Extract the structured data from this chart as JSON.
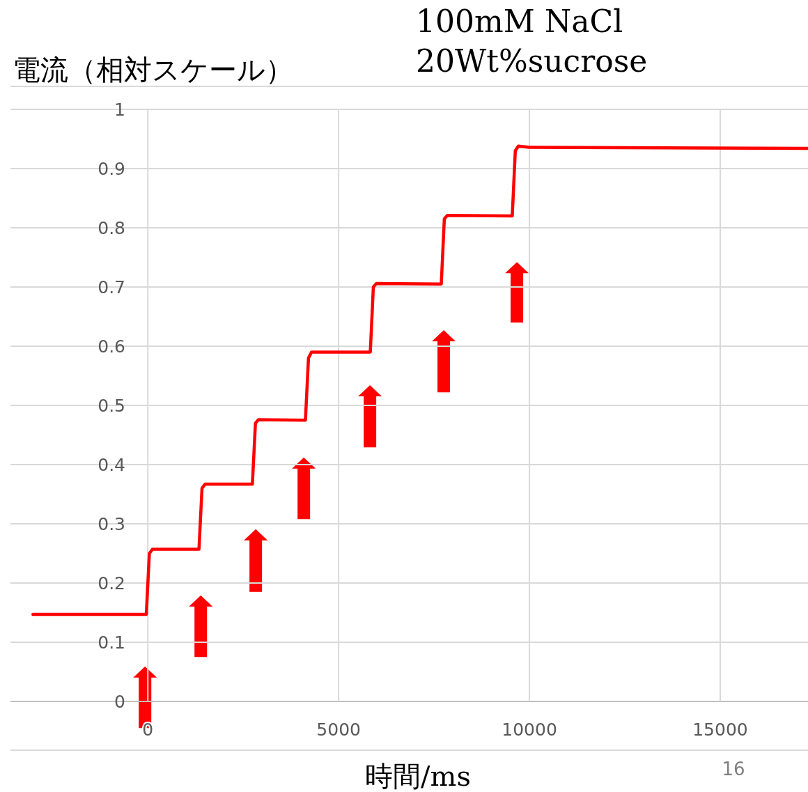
{
  "chart_data": {
    "type": "line",
    "xlabel": "時間/ms",
    "ylabel": "電流（相対スケール）",
    "annotations": [
      "100mM NaCl",
      "20Wt%sucrose",
      "16"
    ],
    "x": [
      -3011,
      -40,
      40,
      120,
      1340,
      1420,
      1500,
      2740,
      2820,
      2900,
      4130,
      4210,
      4290,
      5830,
      5910,
      5990,
      7690,
      7770,
      7850,
      9550,
      9630,
      9710,
      10000,
      17280
    ],
    "series": [
      {
        "color": "#ff0000",
        "values": [
          0.147,
          0.147,
          0.25,
          0.257,
          0.257,
          0.36,
          0.367,
          0.367,
          0.47,
          0.476,
          0.475,
          0.58,
          0.59,
          0.59,
          0.7,
          0.706,
          0.705,
          0.815,
          0.821,
          0.82,
          0.93,
          0.938,
          0.936,
          0.934
        ]
      }
    ],
    "xlim": [
      -3600,
      17300
    ],
    "ylim": [
      0,
      1
    ],
    "xticks": [
      0,
      5000,
      10000,
      15000
    ],
    "yticks": [
      0,
      0.1,
      0.2,
      0.3,
      0.4,
      0.5,
      0.6,
      0.7,
      0.8,
      0.9,
      1
    ],
    "grid": true
  }
}
